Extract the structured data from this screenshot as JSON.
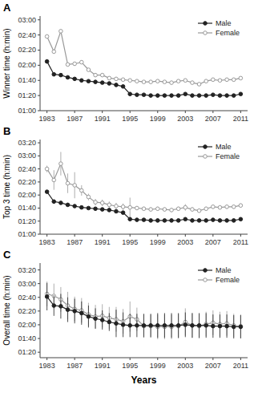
{
  "chart_data": [
    {
      "type": "line",
      "title": "A",
      "y_label": "Winner time (h:min)",
      "x": [
        1983,
        1984,
        1985,
        1986,
        1987,
        1988,
        1989,
        1990,
        1991,
        1992,
        1993,
        1994,
        1995,
        1996,
        1997,
        1998,
        1999,
        2000,
        2001,
        2002,
        2003,
        2004,
        2005,
        2006,
        2007,
        2008,
        2009,
        2010,
        2011
      ],
      "xlim": [
        1982,
        2012
      ],
      "xticks": [
        1983,
        1987,
        1991,
        1995,
        1999,
        2003,
        2007,
        2011
      ],
      "ylim": [
        60,
        185
      ],
      "yticks": [
        {
          "value": 60,
          "label": "01:00"
        },
        {
          "value": 80,
          "label": "01:20"
        },
        {
          "value": 100,
          "label": "01:40"
        },
        {
          "value": 120,
          "label": "02:00"
        },
        {
          "value": 140,
          "label": "02:20"
        },
        {
          "value": 160,
          "label": "02:40"
        },
        {
          "value": 180,
          "label": "03:00"
        }
      ],
      "grid": false,
      "legend": "upper right",
      "series": [
        {
          "name": "Male",
          "color": "#222222",
          "marker": "filled-circle",
          "line_style": "solid",
          "values": [
            125,
            108,
            107,
            104,
            102,
            100,
            99,
            98,
            97,
            96,
            94,
            92,
            82,
            81,
            81,
            80,
            80,
            80,
            80,
            80,
            82,
            80,
            80,
            80,
            81,
            80,
            80,
            80,
            82
          ]
        },
        {
          "name": "Female",
          "color": "#999999",
          "marker": "open-circle",
          "line_style": "solid",
          "values": [
            158,
            138,
            165,
            121,
            122,
            124,
            114,
            107,
            107,
            103,
            102,
            101,
            100,
            99,
            98,
            98,
            99,
            98,
            97,
            99,
            100,
            97,
            95,
            99,
            101,
            100,
            101,
            101,
            103
          ]
        }
      ]
    },
    {
      "type": "line",
      "title": "B",
      "y_label": "Top 3 time (h:min)",
      "x": [
        1983,
        1984,
        1985,
        1986,
        1987,
        1988,
        1989,
        1990,
        1991,
        1992,
        1993,
        1994,
        1995,
        1996,
        1997,
        1998,
        1999,
        2000,
        2001,
        2002,
        2003,
        2004,
        2005,
        2006,
        2007,
        2008,
        2009,
        2010,
        2011
      ],
      "xlim": [
        1982,
        2012
      ],
      "xticks": [
        1983,
        1987,
        1991,
        1995,
        1999,
        2003,
        2007,
        2011
      ],
      "ylim": [
        60,
        205
      ],
      "yticks": [
        {
          "value": 60,
          "label": "01:00"
        },
        {
          "value": 80,
          "label": "01:20"
        },
        {
          "value": 100,
          "label": "01:40"
        },
        {
          "value": 120,
          "label": "02:00"
        },
        {
          "value": 140,
          "label": "02:20"
        },
        {
          "value": 160,
          "label": "02:40"
        },
        {
          "value": 180,
          "label": "03:00"
        },
        {
          "value": 200,
          "label": "03:20"
        }
      ],
      "grid": false,
      "legend": "upper right",
      "series": [
        {
          "name": "Male",
          "color": "#222222",
          "marker": "filled-circle",
          "line_style": "solid",
          "values": [
            125,
            110,
            108,
            105,
            103,
            101,
            100,
            99,
            98,
            97,
            95,
            93,
            83,
            82,
            82,
            81,
            81,
            81,
            81,
            81,
            83,
            81,
            81,
            81,
            82,
            81,
            81,
            81,
            83
          ],
          "errors": [
            1,
            3,
            2,
            2,
            2,
            1,
            1,
            1,
            1,
            1,
            2,
            2,
            2,
            1,
            1,
            1,
            1,
            1,
            1,
            1,
            2,
            1,
            1,
            1,
            1,
            1,
            1,
            1,
            1
          ]
        },
        {
          "name": "Female",
          "color": "#999999",
          "marker": "open-circle",
          "line_style": "solid",
          "values": [
            160,
            143,
            168,
            138,
            135,
            127,
            117,
            109,
            108,
            105,
            103,
            102,
            101,
            100,
            99,
            98,
            99,
            98,
            97,
            99,
            101,
            98,
            96,
            99,
            102,
            101,
            102,
            102,
            104
          ],
          "errors": [
            5,
            15,
            18,
            15,
            20,
            8,
            5,
            5,
            5,
            5,
            5,
            5,
            15,
            3,
            3,
            3,
            3,
            3,
            3,
            3,
            5,
            3,
            3,
            3,
            3,
            3,
            3,
            3,
            3
          ]
        }
      ]
    },
    {
      "type": "line",
      "title": "C",
      "y_label": "Overall time (h:min)",
      "x_label": "Years",
      "x": [
        1983,
        1984,
        1985,
        1986,
        1987,
        1988,
        1989,
        1990,
        1991,
        1992,
        1993,
        1994,
        1995,
        1996,
        1997,
        1998,
        1999,
        2000,
        2001,
        2002,
        2003,
        2004,
        2005,
        2006,
        2007,
        2008,
        2009,
        2010,
        2011
      ],
      "xlim": [
        1982,
        2012
      ],
      "xticks": [
        1983,
        1987,
        1991,
        1995,
        1999,
        2003,
        2007,
        2011
      ],
      "ylim": [
        72,
        210
      ],
      "yticks": [
        {
          "value": 80,
          "label": "01:20"
        },
        {
          "value": 100,
          "label": "01:40"
        },
        {
          "value": 120,
          "label": "02:00"
        },
        {
          "value": 140,
          "label": "02:20"
        },
        {
          "value": 160,
          "label": "02:40"
        },
        {
          "value": 180,
          "label": "03:00"
        },
        {
          "value": 200,
          "label": "03:20"
        }
      ],
      "grid": false,
      "legend": "upper right",
      "series": [
        {
          "name": "Male",
          "color": "#222222",
          "marker": "filled-circle",
          "line_style": "solid",
          "values": [
            161,
            148,
            147,
            142,
            140,
            137,
            132,
            129,
            127,
            124,
            122,
            120,
            119,
            119,
            119,
            119,
            119,
            119,
            119,
            119,
            120,
            119,
            119,
            119,
            118,
            118,
            118,
            117,
            117
          ],
          "errors": [
            20,
            15,
            18,
            18,
            18,
            17,
            16,
            15,
            14,
            13,
            20,
            18,
            17,
            17,
            17,
            17,
            18,
            18,
            18,
            18,
            18,
            18,
            18,
            18,
            17,
            17,
            17,
            17,
            17
          ]
        },
        {
          "name": "Female",
          "color": "#999999",
          "marker": "open-circle",
          "line_style": "solid",
          "values": [
            165,
            162,
            157,
            148,
            143,
            141,
            135,
            132,
            133,
            130,
            128,
            125,
            132,
            128,
            118,
            118,
            117,
            117,
            117,
            118,
            124,
            119,
            118,
            121,
            123,
            121,
            122,
            119,
            118
          ],
          "errors": [
            18,
            18,
            18,
            20,
            18,
            18,
            17,
            17,
            17,
            16,
            18,
            18,
            22,
            17,
            17,
            17,
            18,
            18,
            18,
            18,
            20,
            18,
            18,
            18,
            18,
            18,
            18,
            17,
            17
          ]
        }
      ]
    }
  ]
}
